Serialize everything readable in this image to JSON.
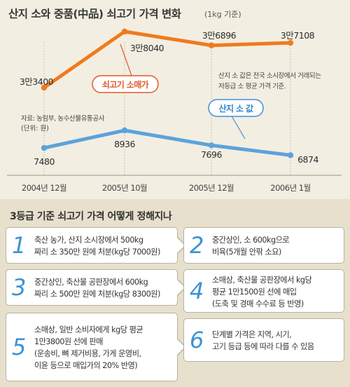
{
  "chart_data": {
    "type": "line",
    "title": "산지 소와 중품(中品) 쇠고기 가격 변화",
    "unit": "(1kg 기준)",
    "categories": [
      "2004년 12월",
      "2005년 10월",
      "2005년 12월",
      "2006년 1월"
    ],
    "series": [
      {
        "name": "쇠고기 소매가",
        "color": "#f07a1e",
        "values": [
          33400,
          38040,
          36896,
          37108
        ],
        "labels": [
          "3만3400",
          "3만8040",
          "3만6896",
          "3만7108"
        ]
      },
      {
        "name": "산지 소 값",
        "color": "#5ba3dc",
        "values": [
          7480,
          8936,
          7696,
          6874
        ],
        "labels": [
          "7480",
          "8936",
          "7696",
          "6874"
        ]
      }
    ],
    "source": "자료: 농림부, 농수산물유통공사",
    "unit_note": "(단위: 원)",
    "annotation": [
      "산지 소 값은 전국 소시장에서 거래되는",
      "저등급 소 평균 가격 기준."
    ]
  },
  "steps": {
    "title": "3등급 기준 쇠고기 가격 어떻게 정해지나",
    "items": [
      {
        "num": "1",
        "lines": [
          "축산 농가, 산지 소시장에서 500kg",
          "짜리 소 350만 원에 처분(kg당 7000원)"
        ]
      },
      {
        "num": "2",
        "lines": [
          "중간상인, 소 600kg으로",
          "비육(5개월 안팎 소요)"
        ]
      },
      {
        "num": "3",
        "lines": [
          "중간상인, 축산물 공판장에서 600kg",
          "짜리 소 500만 원에 처분(kg당 8300원)"
        ]
      },
      {
        "num": "4",
        "lines": [
          "소매상, 축산물 공판장에서 kg당",
          "평균 1만1500원 선에 매입",
          "(도축 및 경매 수수료 등 반영)"
        ]
      },
      {
        "num": "5",
        "lines": [
          "소매상, 일반 소비자에게 kg당 평균",
          "1만3800원 선에 판매",
          "(운송비, 뼈 제거비용, 가게 운영비,",
          "이윤 등으로 매입가의 20% 반영)"
        ]
      },
      {
        "num": "6",
        "lines": [
          "단계별 가격은 지역, 시기,",
          "고기 등급 등에 따라 다를 수 있음"
        ]
      }
    ]
  }
}
